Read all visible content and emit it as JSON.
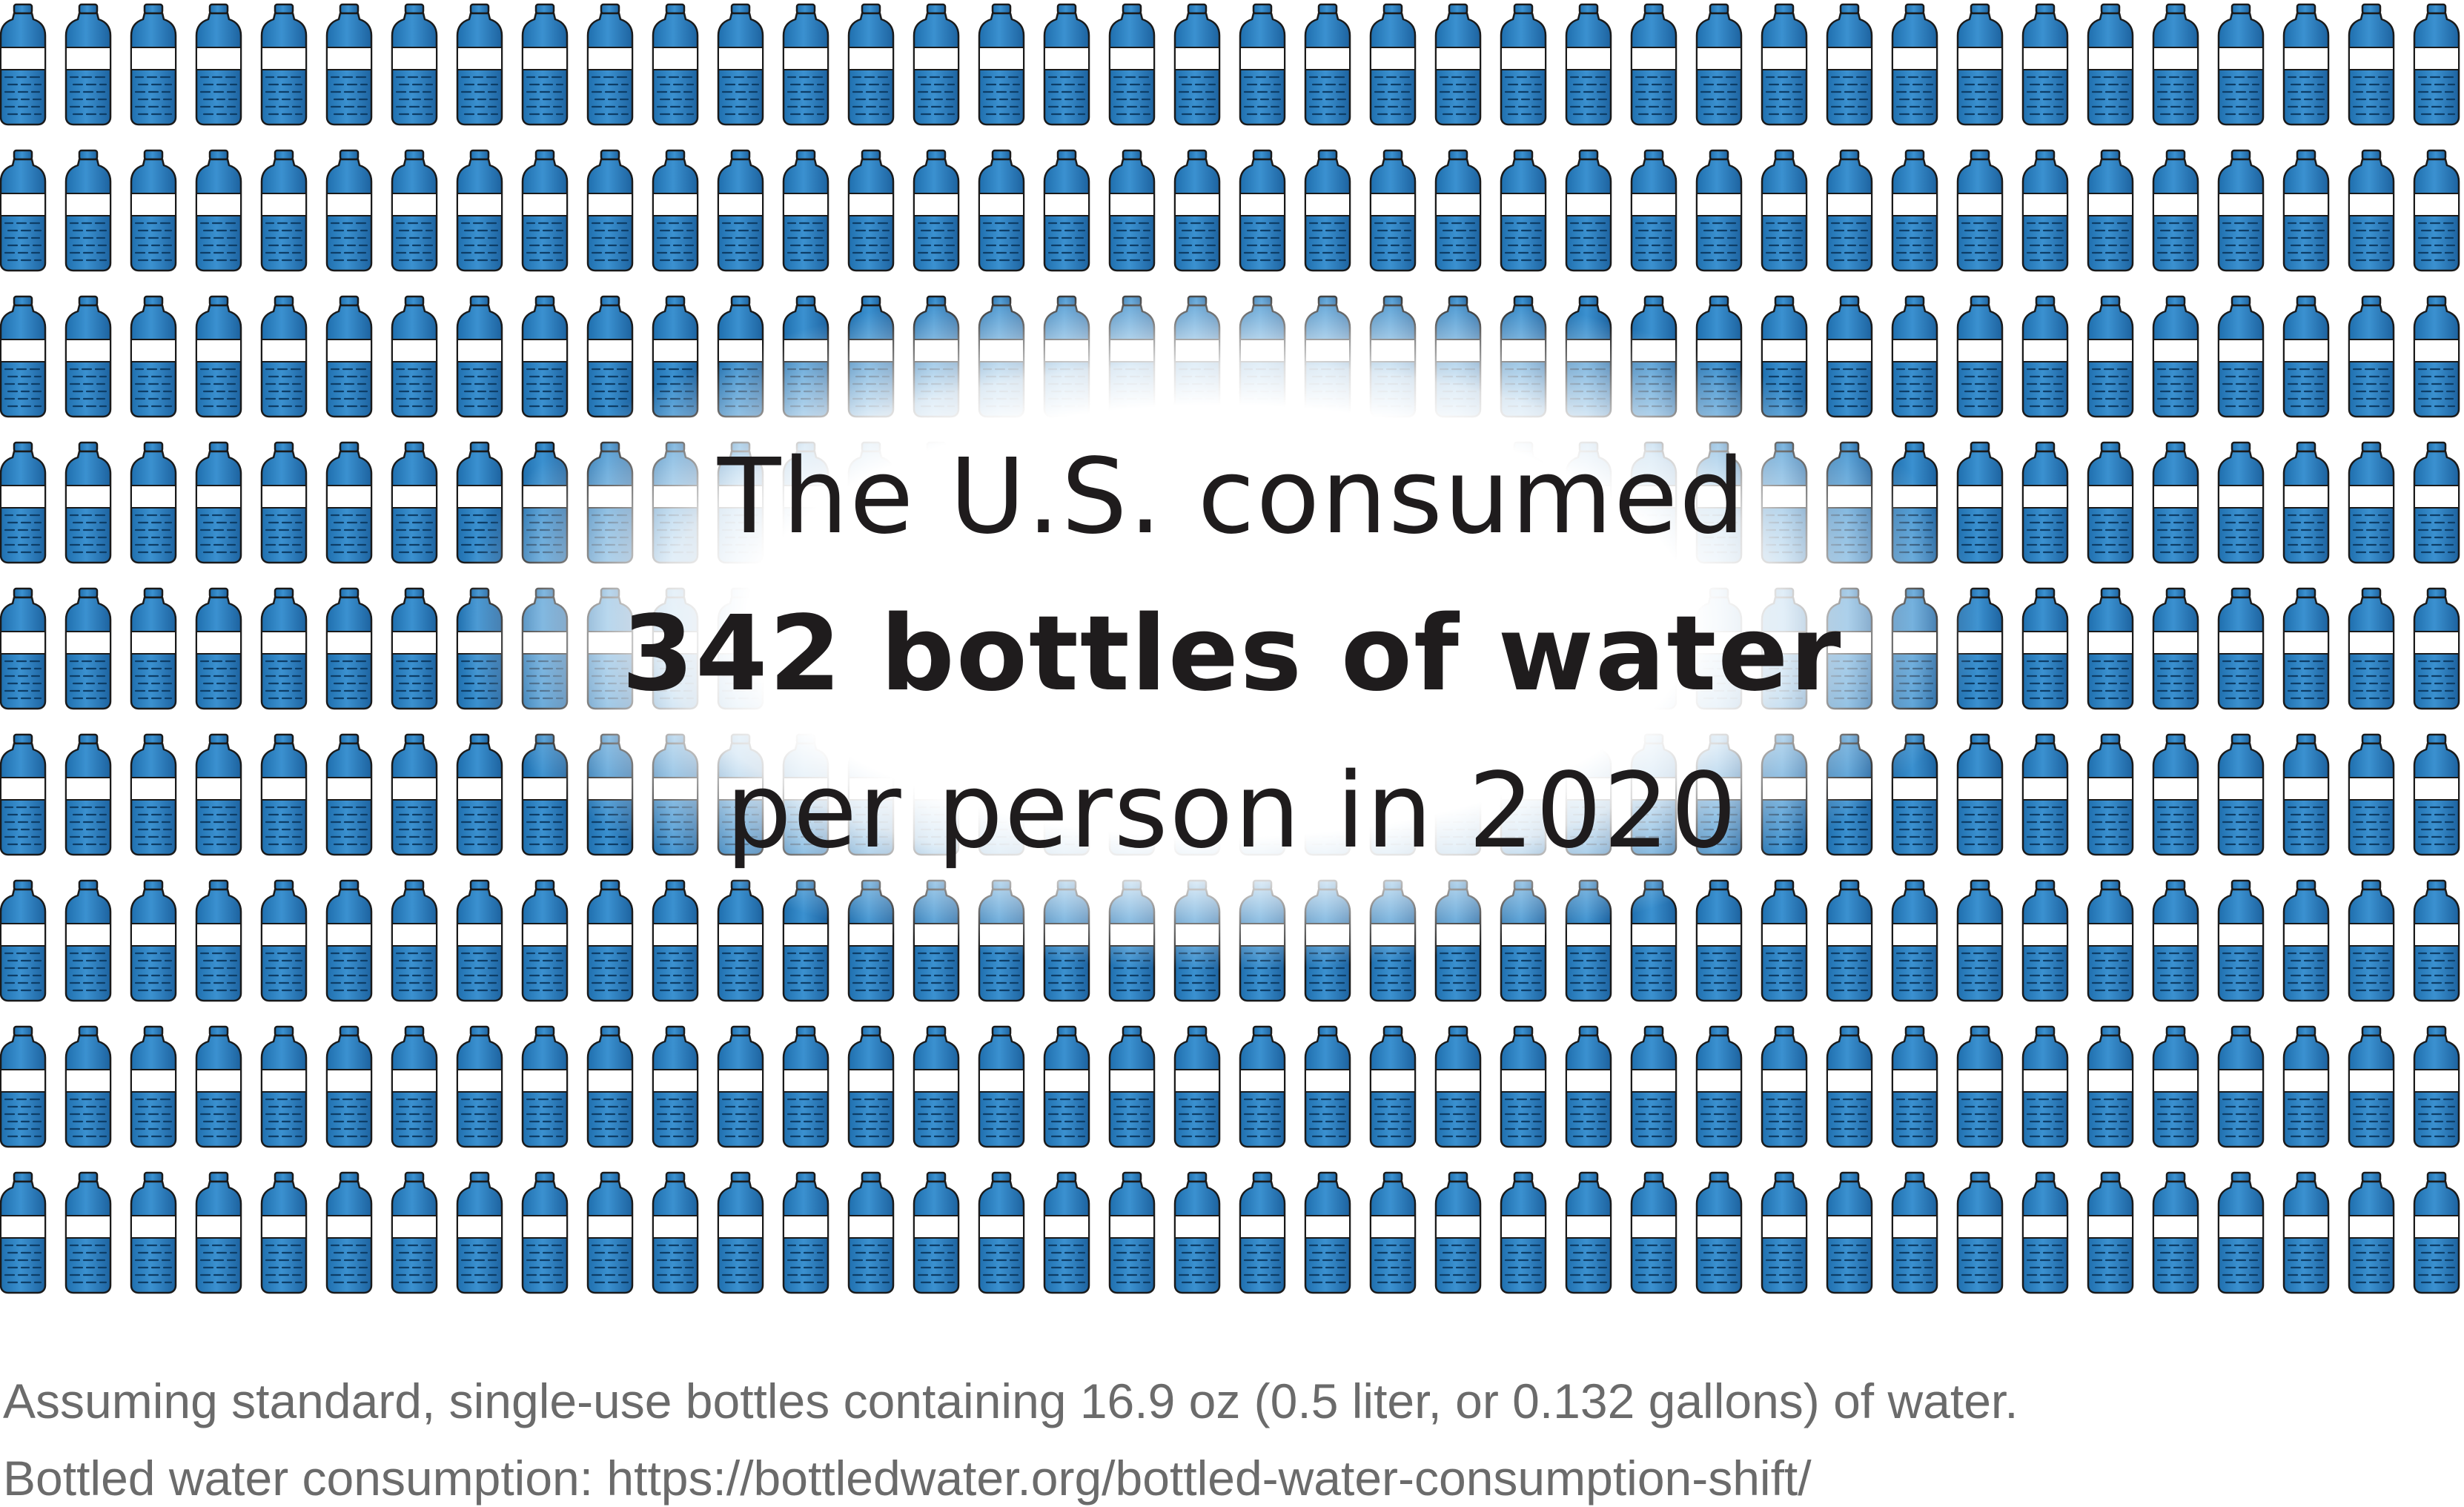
{
  "headline": {
    "line1": "The U.S. consumed",
    "line2": "342 bottles of water",
    "line3": "per person in 2020"
  },
  "footnote": {
    "line1": "Assuming standard, single-use bottles containing 16.9 oz (0.5 liter, or 0.132 gallons) of water.",
    "line2": "Bottled water consumption: https://bottledwater.org/bottled-water-consumption-shift/"
  },
  "pictogram": {
    "icon": "water-bottle-icon",
    "bottle_count": 342,
    "colors": {
      "water": "#2a78b8",
      "water_light": "#5fa8dc",
      "outline": "#1a1a1a",
      "background": "#ffffff"
    }
  }
}
